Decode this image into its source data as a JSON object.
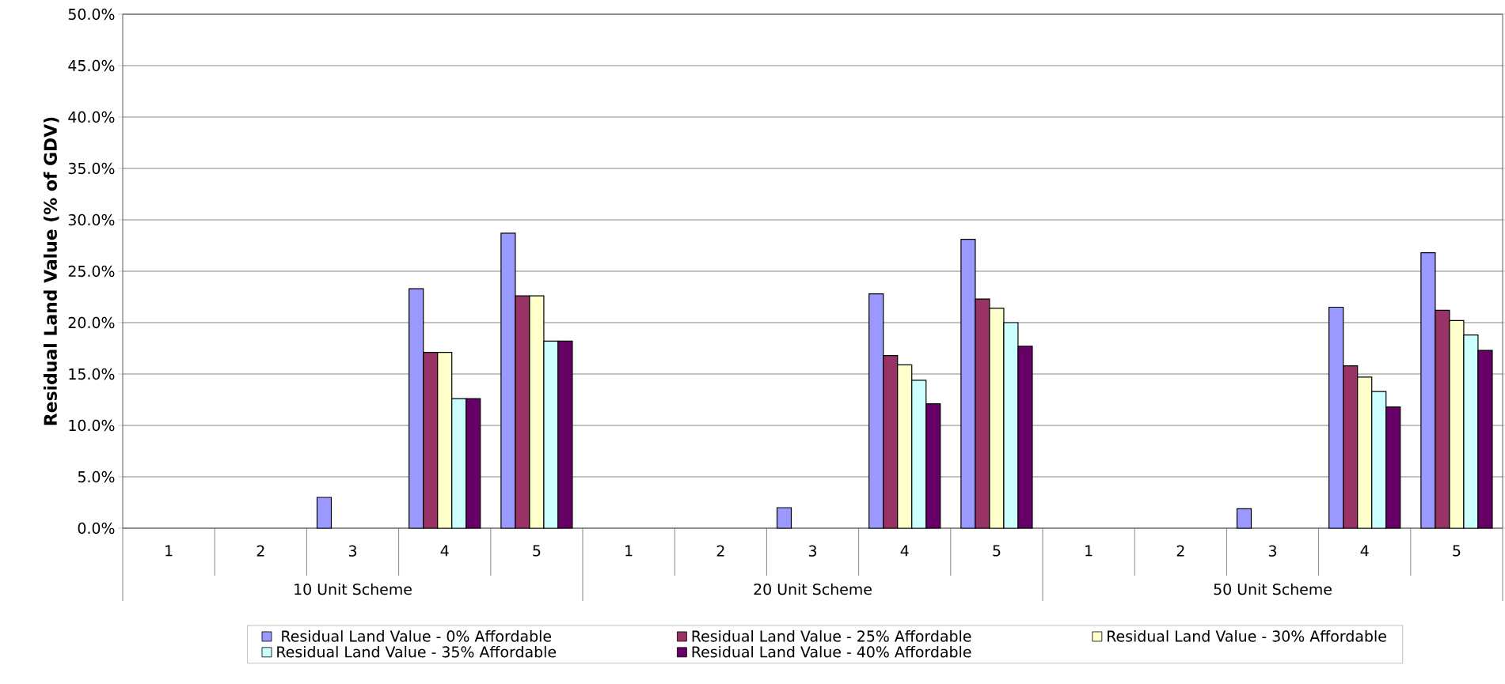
{
  "chart_data": {
    "type": "bar",
    "ylabel": "Residual Land Value (% of GDV)",
    "categories": [
      "1",
      "2",
      "3",
      "4",
      "5",
      "1",
      "2",
      "3",
      "4",
      "5",
      "1",
      "2",
      "3",
      "4",
      "5"
    ],
    "series": [
      {
        "name": "Residual Land Value - 0% Affordable",
        "color": "#9999ff",
        "values": [
          null,
          null,
          3.0,
          23.3,
          28.7,
          null,
          null,
          2.0,
          22.8,
          28.1,
          null,
          null,
          1.9,
          21.5,
          26.8
        ]
      },
      {
        "name": "Residual Land Value - 25% Affordable",
        "color": "#993366",
        "values": [
          null,
          null,
          null,
          17.1,
          22.6,
          null,
          null,
          null,
          16.8,
          22.3,
          null,
          null,
          null,
          15.8,
          21.2
        ]
      },
      {
        "name": "Residual Land Value - 30% Affordable",
        "color": "#ffffcc",
        "values": [
          null,
          null,
          null,
          17.1,
          22.6,
          null,
          null,
          null,
          15.9,
          21.4,
          null,
          null,
          null,
          14.7,
          20.2
        ]
      },
      {
        "name": "Residual Land Value - 35% Affordable",
        "color": "#ccffff",
        "values": [
          null,
          null,
          null,
          12.6,
          18.2,
          null,
          null,
          null,
          14.4,
          20.0,
          null,
          null,
          null,
          13.3,
          18.8
        ]
      },
      {
        "name": "Residual Land Value - 40% Affordable",
        "color": "#660066",
        "values": [
          null,
          null,
          null,
          12.6,
          18.2,
          null,
          null,
          null,
          12.1,
          17.7,
          null,
          null,
          null,
          11.8,
          17.3
        ]
      }
    ],
    "ylim": [
      0,
      50
    ],
    "yticks": [
      {
        "value": 0,
        "label": "0.0%"
      },
      {
        "value": 5,
        "label": "5.0%"
      },
      {
        "value": 10,
        "label": "10.0%"
      },
      {
        "value": 15,
        "label": "15.0%"
      },
      {
        "value": 20,
        "label": "20.0%"
      },
      {
        "value": 25,
        "label": "25.0%"
      },
      {
        "value": 30,
        "label": "30.0%"
      },
      {
        "value": 35,
        "label": "35.0%"
      },
      {
        "value": 40,
        "label": "40.0%"
      },
      {
        "value": 45,
        "label": "45.0%"
      },
      {
        "value": 50,
        "label": "50.0%"
      }
    ],
    "grid": "y",
    "legend": "bottom",
    "annotations": [
      "10 Unit Scheme",
      "20 Unit Scheme",
      "50 Unit Scheme"
    ]
  }
}
